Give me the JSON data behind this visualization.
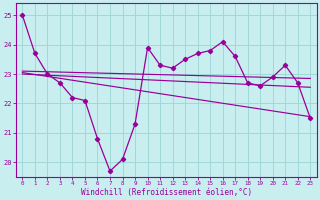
{
  "xlabel": "Windchill (Refroidissement éolien,°C)",
  "hours": [
    0,
    1,
    2,
    3,
    4,
    5,
    6,
    7,
    8,
    9,
    10,
    11,
    12,
    13,
    14,
    15,
    16,
    17,
    18,
    19,
    20,
    21,
    22,
    23
  ],
  "windchill": [
    25.0,
    23.7,
    23.0,
    22.7,
    22.2,
    22.1,
    20.8,
    19.7,
    20.1,
    21.3,
    23.9,
    23.3,
    23.2,
    23.5,
    23.7,
    23.8,
    24.1,
    23.6,
    22.7,
    22.6,
    22.9,
    23.3,
    22.7,
    21.5
  ],
  "trend1_start": 23.1,
  "trend1_end": 22.85,
  "trend2_start": 23.0,
  "trend2_end": 22.55,
  "trend3_start": 23.05,
  "trend3_end": 21.55,
  "line_color": "#990099",
  "bg_color": "#c8eef0",
  "grid_color": "#a0d8d8",
  "ylim": [
    19.5,
    25.4
  ],
  "yticks": [
    20,
    21,
    22,
    23,
    24,
    25
  ],
  "xticks": [
    0,
    1,
    2,
    3,
    4,
    5,
    6,
    7,
    8,
    9,
    10,
    11,
    12,
    13,
    14,
    15,
    16,
    17,
    18,
    19,
    20,
    21,
    22,
    23
  ],
  "xlim": [
    -0.5,
    23.5
  ]
}
